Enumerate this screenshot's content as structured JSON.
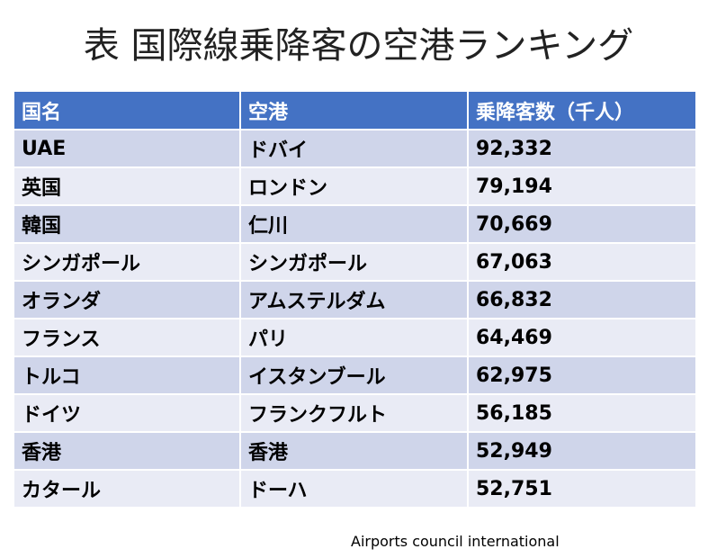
{
  "title": "表 国際線乗降客の空港ランキング",
  "table": {
    "header": [
      "国名",
      "空港",
      "乗降客数（千人）"
    ],
    "rows": [
      [
        "UAE",
        "ドバイ",
        "92,332"
      ],
      [
        "英国",
        "ロンドン",
        "79,194"
      ],
      [
        "韓国",
        "仁川",
        "70,669"
      ],
      [
        "シンガポール",
        "シンガポール",
        "67,063"
      ],
      [
        "オランダ",
        "アムステルダム",
        "66,832"
      ],
      [
        "フランス",
        "パリ",
        "64,469"
      ],
      [
        "トルコ",
        "イスタンブール",
        "62,975"
      ],
      [
        "ドイツ",
        "フランクフルト",
        "56,185"
      ],
      [
        "香港",
        "香港",
        "52,949"
      ],
      [
        "カタール",
        "ドーハ",
        "52,751"
      ]
    ]
  },
  "source": "Airports council international"
}
